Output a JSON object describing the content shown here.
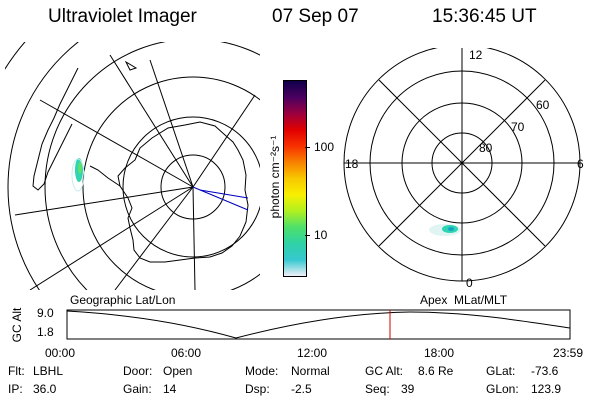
{
  "header": {
    "instrument": "Ultraviolet Imager",
    "date": "07 Sep 07",
    "time": "15:36:45 UT"
  },
  "left_map": {
    "label": "Geographic Lat/Lon",
    "projection": "polar-stereographic",
    "coastline_color": "#000000",
    "aurora_color": "#2fd5b0"
  },
  "color_bar": {
    "unit_label": "photon cm⁻²s⁻¹",
    "scale": "log",
    "ticks": [
      "100",
      "10"
    ],
    "stops": [
      "#f0f0f8",
      "#36c8d0",
      "#2ed2a6",
      "#4ee06a",
      "#b0f020",
      "#f8f000",
      "#f8c800",
      "#f88000",
      "#f83000",
      "#e00000",
      "#9a0040",
      "#4a0060",
      "#10004a"
    ]
  },
  "right_map": {
    "label": "Apex  MLat/MLT",
    "mlt_labels": {
      "top": "12",
      "left": "18",
      "right": "6",
      "bottom": "0"
    },
    "lat_labels": [
      "60",
      "70",
      "80"
    ],
    "aurora_color": "#2fd5b0"
  },
  "altitude_plot": {
    "ylabel": "GC Alt",
    "yticks": [
      "9.0",
      "1.8"
    ],
    "xticks": [
      "00:00",
      "06:00",
      "12:00",
      "18:00",
      "23:59"
    ],
    "marker_time": "15:36",
    "marker_color": "#d00000"
  },
  "status": {
    "flt_label": "Flt:",
    "flt_value": "LBHL",
    "ip_label": "IP:",
    "ip_value": "36.0",
    "door_label": "Door:",
    "door_value": "Open",
    "gain_label": "Gain:",
    "gain_value": "14",
    "mode_label": "Mode:",
    "mode_value": "Normal",
    "dsp_label": "Dsp:",
    "dsp_value": "-2.5",
    "gcalt_label": "GC Alt:",
    "gcalt_value": "8.6 Re",
    "seq_label": "Seq:",
    "seq_value": "39",
    "glat_label": "GLat:",
    "glat_value": "-73.6",
    "glon_label": "GLon:",
    "glon_value": "123.9"
  }
}
